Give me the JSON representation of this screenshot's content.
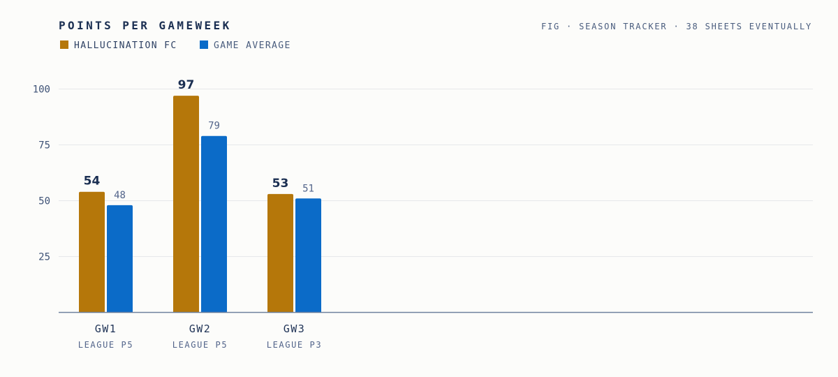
{
  "chart_data": {
    "type": "bar",
    "title": "POINTS PER GAMEWEEK",
    "caption": "FIG · SEASON TRACKER · 38 SHEETS EVENTUALLY",
    "categories": [
      "GW1",
      "GW2",
      "GW3"
    ],
    "subcategories": [
      "LEAGUE P5",
      "LEAGUE P5",
      "LEAGUE P3"
    ],
    "series": [
      {
        "name": "HALLUCINATION FC",
        "values": [
          54,
          97,
          53
        ],
        "color": "#b5770a"
      },
      {
        "name": "GAME AVERAGE",
        "values": [
          48,
          79,
          51
        ],
        "color": "#0b6bc8"
      }
    ],
    "yticks": [
      25,
      50,
      75,
      100
    ],
    "ylim": [
      0,
      100
    ],
    "grid": true,
    "legend": "top-left"
  }
}
